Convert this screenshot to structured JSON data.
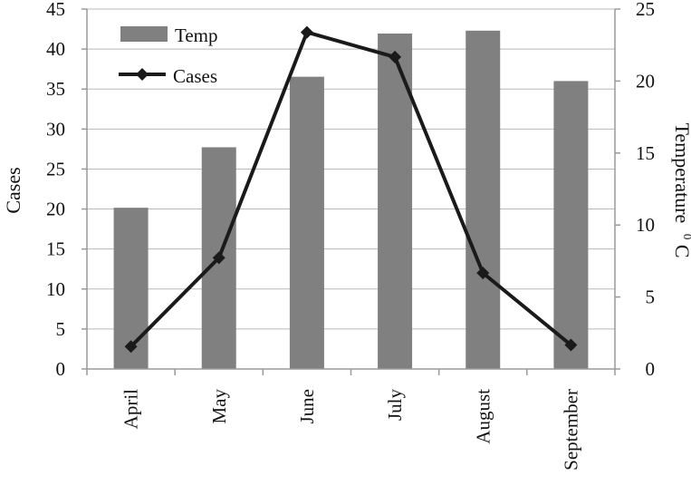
{
  "chart_data": {
    "type": "bar",
    "categories": [
      "April",
      "May",
      "June",
      "July",
      "August",
      "September"
    ],
    "series": [
      {
        "name": "Temp",
        "type": "bar",
        "axis": "right",
        "values": [
          11.2,
          15.4,
          20.3,
          23.3,
          23.5,
          20.0
        ],
        "color": "#808080"
      },
      {
        "name": "Cases",
        "type": "line",
        "axis": "left",
        "values": [
          2.8,
          13.9,
          42.1,
          39.0,
          12.0,
          3.0
        ],
        "color": "#1a1a1a",
        "marker": "diamond"
      }
    ],
    "ylabel_left": "Cases",
    "ylabel_right": "Temperature",
    "ylabel_right_sup": "0",
    "ylabel_right_unit": "C",
    "ylim_left": [
      0,
      45
    ],
    "ylim_right": [
      0,
      25
    ],
    "yticks_left": [
      "0",
      "5",
      "10",
      "15",
      "20",
      "25",
      "30",
      "35",
      "40",
      "45"
    ],
    "yticks_right": [
      "0",
      "5",
      "10",
      "15",
      "20",
      "25"
    ],
    "grid": true,
    "legend_position": "top-left"
  }
}
